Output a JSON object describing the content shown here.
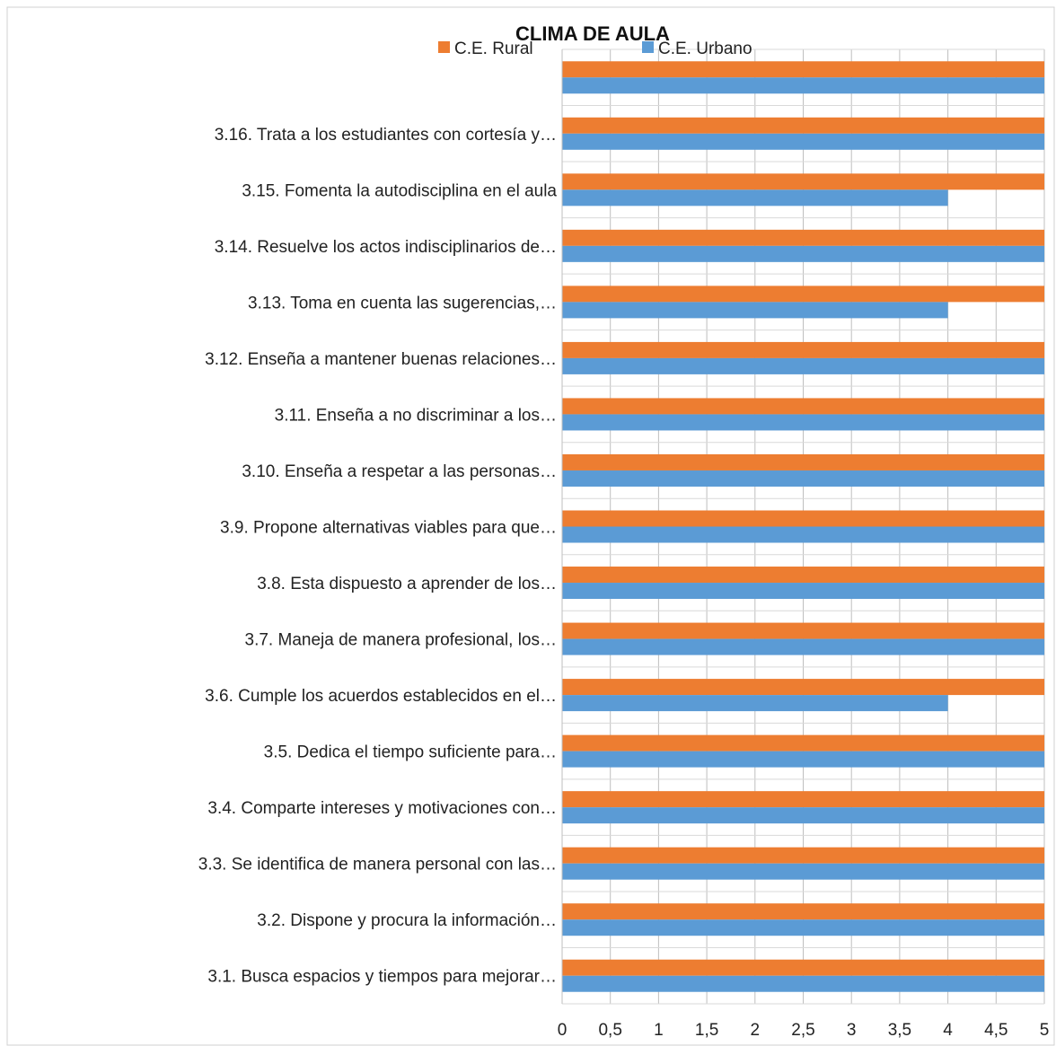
{
  "chart_data": {
    "type": "bar",
    "orientation": "horizontal",
    "title": "CLIMA DE AULA",
    "categories": [
      "",
      "3.16.   Trata a los estudiantes con cortesía y…",
      "3.15.   Fomenta la autodisciplina en el aula",
      "3.14.   Resuelve los actos indisciplinarios de…",
      "3.13.   Toma en cuenta las sugerencias,…",
      "3.12.   Enseña a mantener buenas relaciones…",
      "3.11.   Enseña a no discriminar a los…",
      "3.10.   Enseña a respetar a las personas…",
      "3.9.  Propone alternativas viables para que…",
      "3.8.  Esta dispuesto a aprender de los…",
      "3.7.  Maneja de manera  profesional, los…",
      "3.6.  Cumple los acuerdos establecidos en el…",
      "3.5.  Dedica el tiempo suficiente para…",
      "3.4.  Comparte intereses y motivaciones con…",
      "3.3.  Se identifica de manera personal con las…",
      "3.2.  Dispone y procura la información…",
      "3.1.  Busca espacios y tiempos para mejorar…"
    ],
    "series": [
      {
        "name": "C.E. Rural",
        "color": "#ED7D31",
        "values": [
          5,
          5,
          5,
          5,
          5,
          5,
          5,
          5,
          5,
          5,
          5,
          5,
          5,
          5,
          5,
          5,
          5
        ]
      },
      {
        "name": "C.E. Urbano",
        "color": "#5B9BD5",
        "values": [
          5,
          5,
          4,
          5,
          4,
          5,
          5,
          5,
          5,
          5,
          5,
          4,
          5,
          5,
          5,
          5,
          5
        ]
      }
    ],
    "xlim": [
      0,
      5
    ],
    "x_ticks": [
      "0",
      "0,5",
      "1",
      "1,5",
      "2",
      "2,5",
      "3",
      "3,5",
      "4",
      "4,5",
      "5"
    ],
    "grid": true,
    "legend": "top"
  }
}
